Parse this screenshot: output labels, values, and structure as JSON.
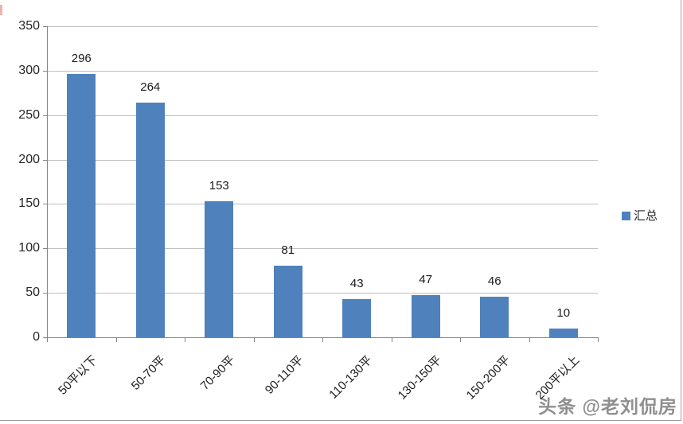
{
  "chart_data": {
    "type": "bar",
    "categories": [
      "50平以下",
      "50-70平",
      "70-90平",
      "90-110平",
      "110-130平",
      "130-150平",
      "150-200平",
      "200平以上"
    ],
    "series": [
      {
        "name": "汇总",
        "values": [
          296,
          264,
          153,
          81,
          43,
          47,
          46,
          10
        ]
      }
    ],
    "title": "",
    "xlabel": "",
    "ylabel": "",
    "ylim": [
      0,
      350
    ],
    "yticks": [
      0,
      50,
      100,
      150,
      200,
      250,
      300,
      350
    ],
    "grid": true,
    "data_labels": true,
    "legend_position": "right",
    "bar_color": "#4f81bd",
    "gridline_color": "#bfbfbf",
    "axis_color": "#858585"
  },
  "legend": {
    "label": "汇总",
    "swatch_color": "#4f81bd"
  },
  "watermark": {
    "text": "头条 @老刘侃房"
  }
}
